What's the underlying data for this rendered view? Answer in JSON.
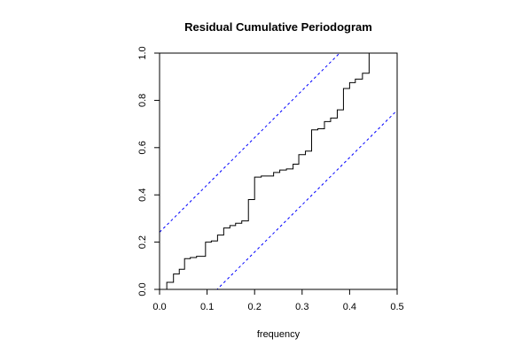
{
  "chart_data": {
    "type": "line",
    "title": "Residual Cumulative Periodogram",
    "xlabel": "frequency",
    "ylabel": "",
    "xlim": [
      0,
      0.5
    ],
    "ylim": [
      0,
      1
    ],
    "x_ticks": [
      {
        "value": 0.0,
        "label": "0.0"
      },
      {
        "value": 0.1,
        "label": "0.1"
      },
      {
        "value": 0.2,
        "label": "0.2"
      },
      {
        "value": 0.3,
        "label": "0.3"
      },
      {
        "value": 0.4,
        "label": "0.4"
      },
      {
        "value": 0.5,
        "label": "0.5"
      }
    ],
    "y_ticks": [
      {
        "value": 0.0,
        "label": "0.0"
      },
      {
        "value": 0.2,
        "label": "0.2"
      },
      {
        "value": 0.4,
        "label": "0.4"
      },
      {
        "value": 0.6,
        "label": "0.6"
      },
      {
        "value": 0.8,
        "label": "0.8"
      },
      {
        "value": 1.0,
        "label": "1.0"
      }
    ],
    "grid": false,
    "legend": "none",
    "colors": {
      "step": "#000000",
      "bounds": "#0000ff",
      "frame": "#000000"
    },
    "series": [
      {
        "style": "step",
        "x": [
          0.0,
          0.0152,
          0.0293,
          0.0415,
          0.0526,
          0.0647,
          0.0778,
          0.0967,
          0.1089,
          0.122,
          0.135,
          0.148,
          0.16,
          0.173,
          0.187,
          0.2,
          0.214,
          0.226,
          0.24,
          0.253,
          0.267,
          0.281,
          0.293,
          0.307,
          0.32,
          0.333,
          0.347,
          0.36,
          0.374,
          0.387,
          0.4,
          0.412,
          0.427,
          0.441,
          0.454,
          0.467,
          0.481,
          0.5
        ],
        "y": [
          0.0,
          0.03,
          0.065,
          0.085,
          0.13,
          0.135,
          0.14,
          0.2,
          0.205,
          0.23,
          0.26,
          0.27,
          0.28,
          0.29,
          0.38,
          0.475,
          0.48,
          0.48,
          0.495,
          0.505,
          0.51,
          0.53,
          0.57,
          0.585,
          0.675,
          0.68,
          0.71,
          0.725,
          0.76,
          0.85,
          0.875,
          0.89,
          0.915,
          1.0,
          1.0,
          1.0,
          1.0,
          1.0
        ]
      },
      {
        "style": "dashed",
        "x": [
          0.0,
          0.5
        ],
        "y": [
          0.242,
          1.242
        ]
      },
      {
        "style": "dashed",
        "x": [
          0.0,
          0.5
        ],
        "y": [
          -0.242,
          0.758
        ]
      }
    ]
  }
}
